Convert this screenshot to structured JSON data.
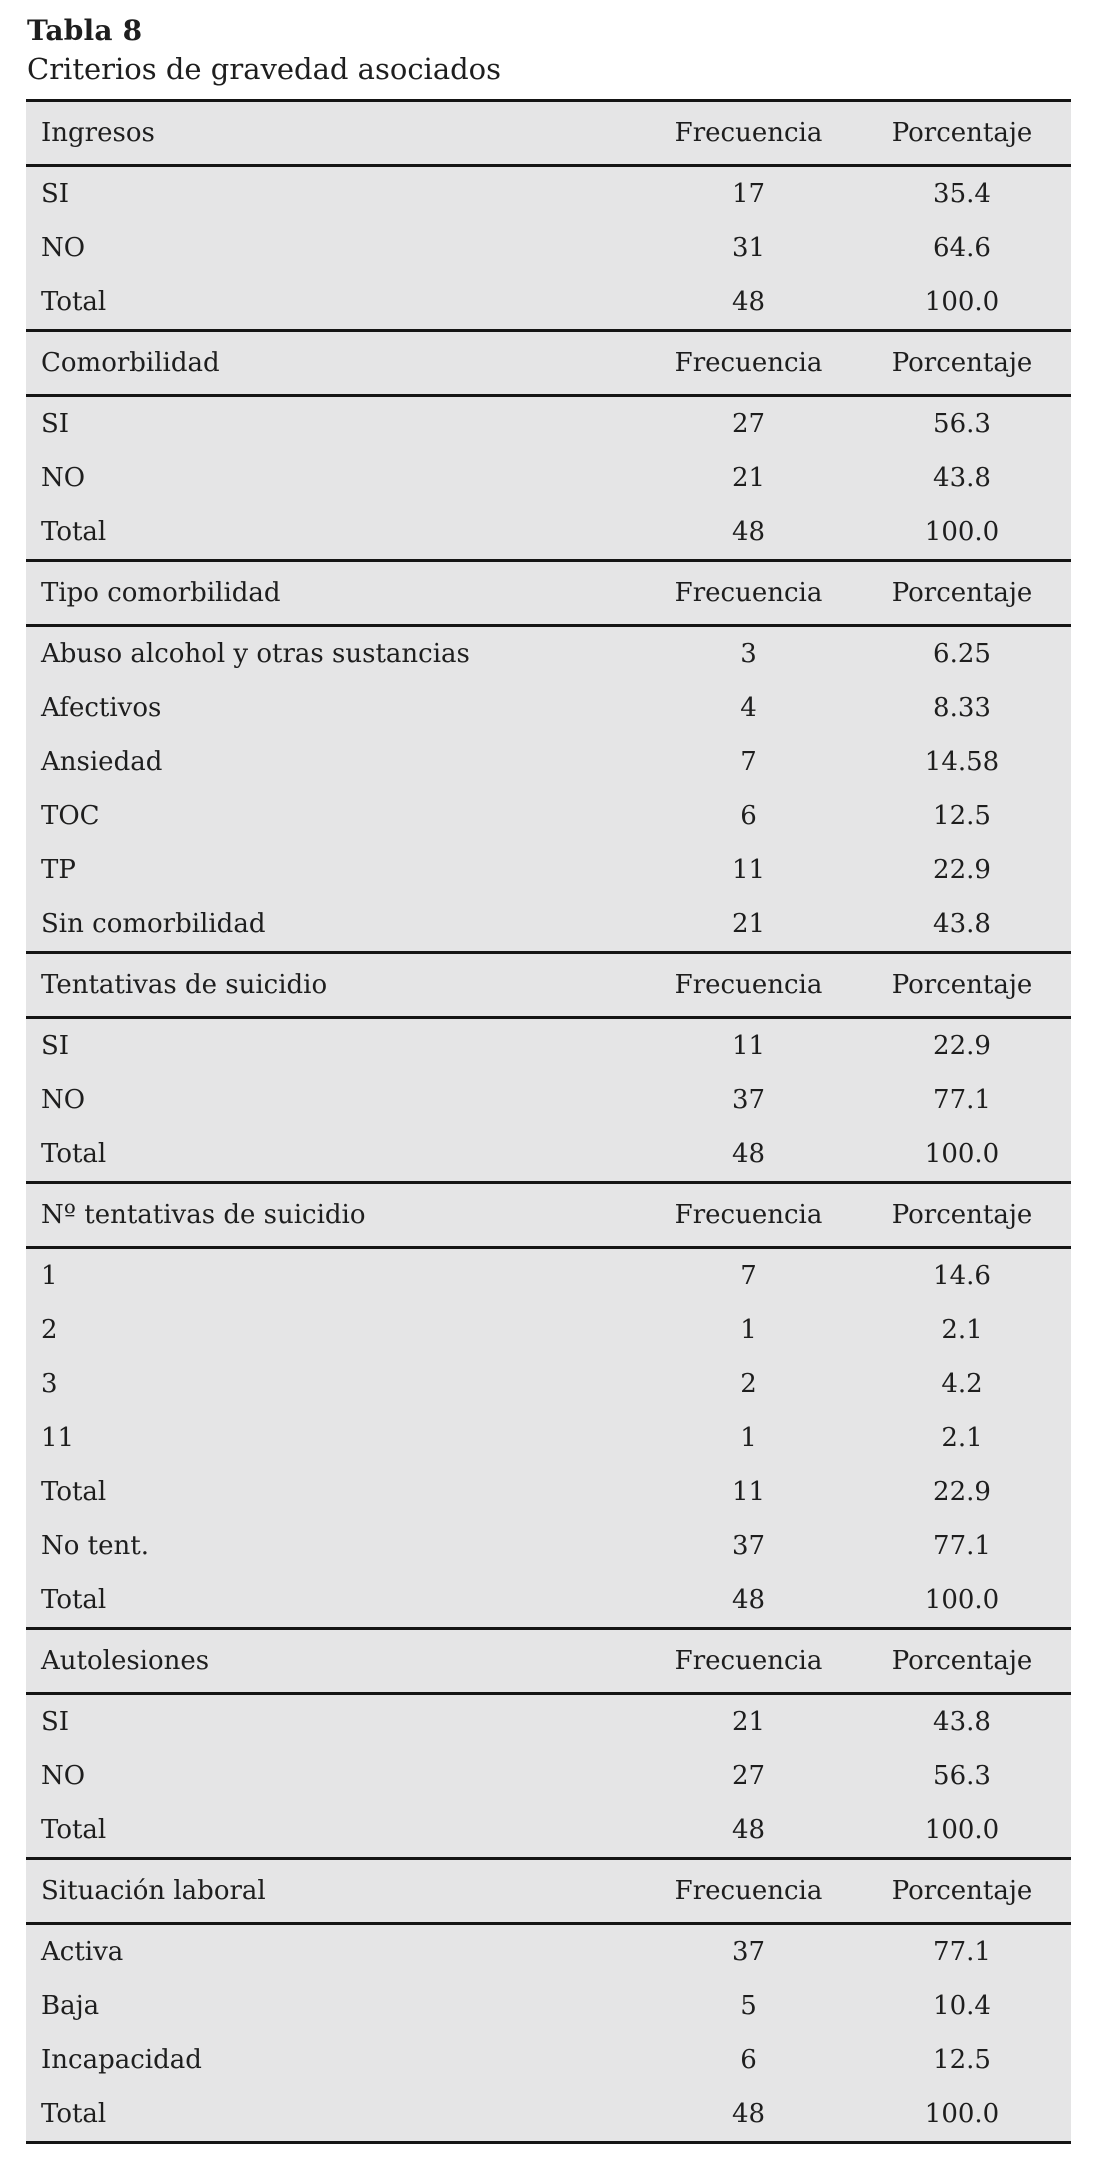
{
  "page": {
    "title": "Tabla 8",
    "subtitle": "Criterios de gravedad asociados"
  },
  "colors": {
    "table_bg": "#e5e5e6",
    "rule_color": "#151515",
    "text_color": "#1e1e1e"
  },
  "table": {
    "col_headers": [
      "Frecuencia",
      "Porcentaje"
    ],
    "sections": [
      {
        "header": "Ingresos",
        "rows": [
          {
            "label": "SI",
            "frecuencia": "17",
            "porcentaje": "35.4"
          },
          {
            "label": "NO",
            "frecuencia": "31",
            "porcentaje": "64.6"
          },
          {
            "label": "Total",
            "frecuencia": "48",
            "porcentaje": "100.0"
          }
        ]
      },
      {
        "header": "Comorbilidad",
        "rows": [
          {
            "label": "SI",
            "frecuencia": "27",
            "porcentaje": "56.3"
          },
          {
            "label": "NO",
            "frecuencia": "21",
            "porcentaje": "43.8"
          },
          {
            "label": "Total",
            "frecuencia": "48",
            "porcentaje": "100.0"
          }
        ]
      },
      {
        "header": "Tipo comorbilidad",
        "rows": [
          {
            "label": "Abuso alcohol y otras sustancias",
            "frecuencia": "3",
            "porcentaje": "6.25"
          },
          {
            "label": "Afectivos",
            "frecuencia": "4",
            "porcentaje": "8.33"
          },
          {
            "label": "Ansiedad",
            "frecuencia": "7",
            "porcentaje": "14.58"
          },
          {
            "label": "TOC",
            "frecuencia": "6",
            "porcentaje": "12.5"
          },
          {
            "label": "TP",
            "frecuencia": "11",
            "porcentaje": "22.9"
          },
          {
            "label": "Sin comorbilidad",
            "frecuencia": "21",
            "porcentaje": "43.8"
          }
        ]
      },
      {
        "header": "Tentativas de suicidio",
        "rows": [
          {
            "label": "SI",
            "frecuencia": "11",
            "porcentaje": "22.9"
          },
          {
            "label": "NO",
            "frecuencia": "37",
            "porcentaje": "77.1"
          },
          {
            "label": "Total",
            "frecuencia": "48",
            "porcentaje": "100.0"
          }
        ]
      },
      {
        "header": "Nº tentativas de suicidio",
        "rows": [
          {
            "label": "1",
            "frecuencia": "7",
            "porcentaje": "14.6"
          },
          {
            "label": "2",
            "frecuencia": "1",
            "porcentaje": "2.1"
          },
          {
            "label": "3",
            "frecuencia": "2",
            "porcentaje": "4.2"
          },
          {
            "label": "11",
            "frecuencia": "1",
            "porcentaje": "2.1"
          },
          {
            "label": "Total",
            "frecuencia": "11",
            "porcentaje": "22.9"
          },
          {
            "label": "No tent.",
            "frecuencia": "37",
            "porcentaje": "77.1"
          },
          {
            "label": "Total",
            "frecuencia": "48",
            "porcentaje": "100.0"
          }
        ]
      },
      {
        "header": "Autolesiones",
        "rows": [
          {
            "label": "SI",
            "frecuencia": "21",
            "porcentaje": "43.8"
          },
          {
            "label": "NO",
            "frecuencia": "27",
            "porcentaje": "56.3"
          },
          {
            "label": "Total",
            "frecuencia": "48",
            "porcentaje": "100.0"
          }
        ]
      },
      {
        "header": "Situación laboral",
        "rows": [
          {
            "label": "Activa",
            "frecuencia": "37",
            "porcentaje": "77.1"
          },
          {
            "label": "Baja",
            "frecuencia": "5",
            "porcentaje": "10.4"
          },
          {
            "label": "Incapacidad",
            "frecuencia": "6",
            "porcentaje": "12.5"
          },
          {
            "label": "Total",
            "frecuencia": "48",
            "porcentaje": "100.0"
          }
        ]
      }
    ]
  }
}
